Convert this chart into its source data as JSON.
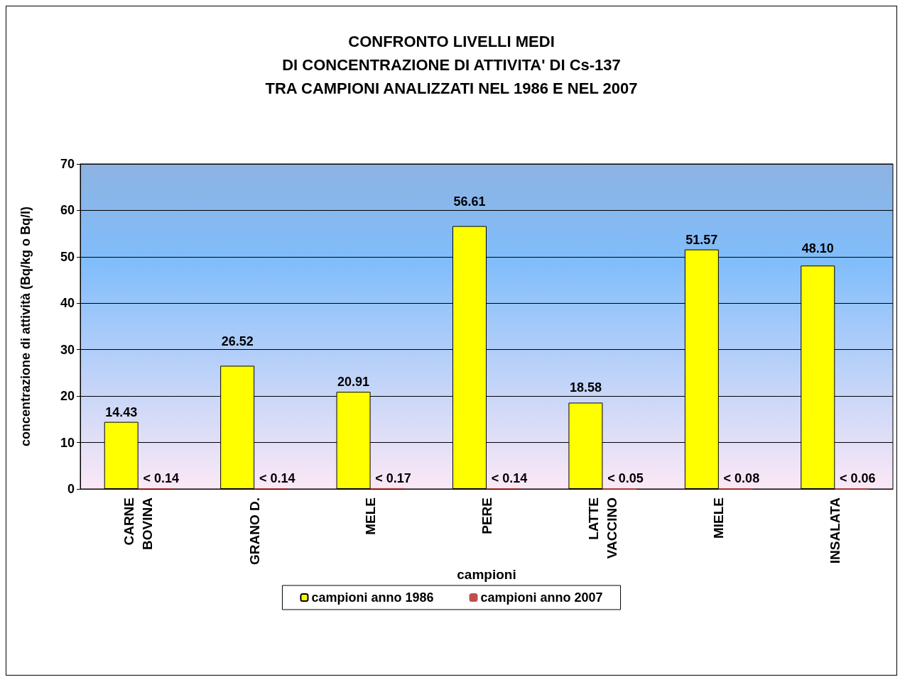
{
  "chart_data": {
    "type": "bar",
    "title": "CONFRONTO LIVELLI MEDI\nDI CONCENTRAZIONE DI ATTIVITA' DI Cs-137\nTRA CAMPIONI ANALIZZATI NEL 1986 E NEL 2007",
    "xlabel": "campioni",
    "ylabel": "concentrazione di attività (Bq/kg o Bq/l)",
    "categories": [
      "CARNE\nBOVINA",
      "GRANO D.",
      "MELE",
      "PERE",
      "LATTE\nVACCINO",
      "MIELE",
      "INSALATA"
    ],
    "series": [
      {
        "name": "campioni anno 1986",
        "color": "#ffff00",
        "values": [
          14.43,
          26.52,
          20.91,
          56.61,
          18.58,
          51.57,
          48.1
        ],
        "value_labels": [
          "14.43",
          "26.52",
          "20.91",
          "56.61",
          "18.58",
          "51.57",
          "48.10"
        ]
      },
      {
        "name": "campioni anno 2007",
        "color": "#c0504d",
        "values": [
          0.14,
          0.14,
          0.17,
          0.14,
          0.05,
          0.08,
          0.06
        ],
        "value_labels": [
          "< 0.14",
          "< 0.14",
          "< 0.17",
          "< 0.14",
          "< 0.05",
          "< 0.08",
          "< 0.06"
        ]
      }
    ],
    "ylim": [
      0,
      70
    ],
    "yticks": [
      0,
      10,
      20,
      30,
      40,
      50,
      60,
      70
    ],
    "grid": "y",
    "legend": "bottom"
  }
}
